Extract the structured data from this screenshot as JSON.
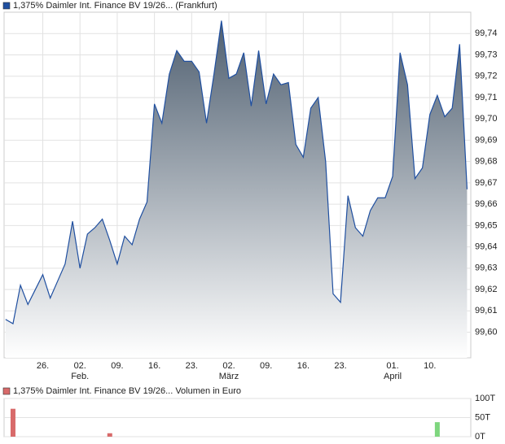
{
  "chart_data": [
    {
      "type": "area",
      "title": "1,375% Daimler Int. Finance BV 19/26... (Frankfurt)",
      "legend_color": "#1f4fa0",
      "color": "#1f4fa0",
      "fill_top": "#4f5f70",
      "x": [
        0,
        1,
        2,
        3,
        4,
        5,
        6,
        7,
        8,
        9,
        10,
        11,
        12,
        13,
        14,
        15,
        16,
        17,
        18,
        19,
        20,
        21,
        22,
        23,
        24,
        25,
        26,
        27,
        28,
        29,
        30,
        31,
        32,
        33,
        34,
        35,
        36,
        37,
        38,
        39,
        40,
        41,
        42,
        43,
        44,
        45,
        46,
        47,
        48,
        49,
        50,
        51,
        52,
        53,
        54,
        55,
        56,
        57,
        58,
        59,
        60,
        61,
        62
      ],
      "values": [
        99.606,
        99.604,
        99.622,
        99.613,
        99.62,
        99.627,
        99.616,
        99.624,
        99.632,
        99.652,
        99.63,
        99.646,
        99.649,
        99.653,
        99.643,
        99.632,
        99.645,
        99.641,
        99.653,
        99.661,
        99.707,
        99.698,
        99.721,
        99.732,
        99.727,
        99.727,
        99.722,
        99.698,
        99.721,
        99.746,
        99.719,
        99.721,
        99.731,
        99.706,
        99.732,
        99.707,
        99.721,
        99.716,
        99.717,
        99.688,
        99.682,
        99.705,
        99.71,
        99.68,
        99.618,
        99.614,
        99.664,
        99.649,
        99.645,
        99.657,
        99.663,
        99.663,
        99.673,
        99.731,
        99.716,
        99.672,
        99.677,
        99.702,
        99.711,
        99.701,
        99.705,
        99.735,
        99.667
      ],
      "xlim": [
        -0.2,
        62.5
      ],
      "xticks": [
        {
          "value": 5,
          "label": "26."
        },
        {
          "value": 10,
          "label": "02."
        },
        {
          "value": 15,
          "label": "09."
        },
        {
          "value": 20,
          "label": "16."
        },
        {
          "value": 25,
          "label": "23."
        },
        {
          "value": 30,
          "label": "02."
        },
        {
          "value": 35,
          "label": "09."
        },
        {
          "value": 40,
          "label": "16."
        },
        {
          "value": 45,
          "label": "23."
        },
        {
          "value": 52,
          "label": "01."
        },
        {
          "value": 57,
          "label": "10."
        }
      ],
      "month_labels": [
        {
          "value": 10,
          "label": "Feb."
        },
        {
          "value": 30,
          "label": "März"
        },
        {
          "value": 52,
          "label": "April"
        }
      ],
      "ylim": [
        99.588,
        99.75
      ],
      "yticks": [
        {
          "value": 99.6,
          "label": "99,60"
        },
        {
          "value": 99.61,
          "label": "99,61"
        },
        {
          "value": 99.62,
          "label": "99,62"
        },
        {
          "value": 99.63,
          "label": "99,63"
        },
        {
          "value": 99.64,
          "label": "99,64"
        },
        {
          "value": 99.65,
          "label": "99,65"
        },
        {
          "value": 99.66,
          "label": "99,66"
        },
        {
          "value": 99.67,
          "label": "99,67"
        },
        {
          "value": 99.68,
          "label": "99,68"
        },
        {
          "value": 99.69,
          "label": "99,69"
        },
        {
          "value": 99.7,
          "label": "99,70"
        },
        {
          "value": 99.71,
          "label": "99,71"
        },
        {
          "value": 99.72,
          "label": "99,72"
        },
        {
          "value": 99.73,
          "label": "99,73"
        },
        {
          "value": 99.74,
          "label": "99,74"
        }
      ],
      "grid": true
    },
    {
      "type": "bar",
      "title": "1,375% Daimler Int. Finance BV 19/26... Volumen in Euro",
      "legend_color": "#d86a6a",
      "x": [
        1,
        14,
        58
      ],
      "values": [
        73,
        9,
        38
      ],
      "colors": [
        "#d86a6a",
        "#d86a6a",
        "#7ed67e"
      ],
      "xlim": [
        -0.2,
        62.5
      ],
      "ylim": [
        0,
        100
      ],
      "yticks": [
        {
          "value": 0,
          "label": "0T"
        },
        {
          "value": 50,
          "label": "50T"
        },
        {
          "value": 100,
          "label": "100T"
        }
      ],
      "grid": true
    }
  ]
}
